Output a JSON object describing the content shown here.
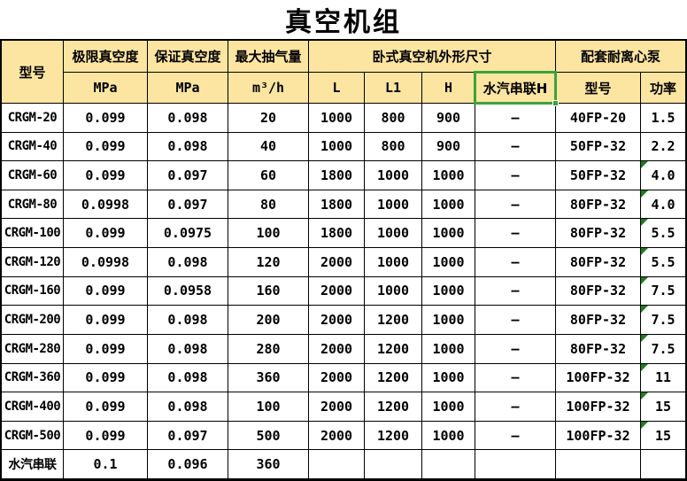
{
  "title": "真空机组",
  "colors": {
    "header_bg": "#FBE5A0",
    "selection_green": "#3CA23C",
    "flag_green": "#1E7E1E",
    "grid_line": "#000000"
  },
  "table": {
    "header": {
      "model": "型号",
      "col_ultimate": "极限真空度",
      "col_guaranteed": "保证真空度",
      "col_max_pump": "最大抽气量",
      "group_dimensions": "卧式真空机外形尺寸",
      "group_pump": "配套耐离心泵",
      "unit_mpa1": "MPa",
      "unit_mpa2": "MPa",
      "unit_m3h": "m³/h",
      "dim_l": "L",
      "dim_l1": "L1",
      "dim_h": "H",
      "dim_steam": "水汽串联H",
      "pump_model": "型号",
      "pump_power": "功率"
    },
    "selected_cell_label": "水汽串联H",
    "rows": [
      {
        "model": "CRGM-20",
        "ultimate": "0.099",
        "guaranteed": "0.098",
        "max": "20",
        "L": "1000",
        "L1": "800",
        "H": "900",
        "steam": "–",
        "pump": "40FP-20",
        "power": "1.5",
        "flag": false
      },
      {
        "model": "CRGM-40",
        "ultimate": "0.099",
        "guaranteed": "0.098",
        "max": "40",
        "L": "1000",
        "L1": "800",
        "H": "900",
        "steam": "–",
        "pump": "50FP-32",
        "power": "2.2",
        "flag": false
      },
      {
        "model": "CRGM-60",
        "ultimate": "0.099",
        "guaranteed": "0.097",
        "max": "60",
        "L": "1800",
        "L1": "1000",
        "H": "1000",
        "steam": "–",
        "pump": "50FP-32",
        "power": "4.0",
        "flag": true
      },
      {
        "model": "CRGM-80",
        "ultimate": "0.0998",
        "guaranteed": "0.097",
        "max": "80",
        "L": "1800",
        "L1": "1000",
        "H": "1000",
        "steam": "–",
        "pump": "80FP-32",
        "power": "4.0",
        "flag": true
      },
      {
        "model": "CRGM-100",
        "ultimate": "0.099",
        "guaranteed": "0.0975",
        "max": "100",
        "L": "1800",
        "L1": "1000",
        "H": "1000",
        "steam": "–",
        "pump": "80FP-32",
        "power": "5.5",
        "flag": true
      },
      {
        "model": "CRGM-120",
        "ultimate": "0.0998",
        "guaranteed": "0.098",
        "max": "120",
        "L": "2000",
        "L1": "1000",
        "H": "1000",
        "steam": "–",
        "pump": "80FP-32",
        "power": "5.5",
        "flag": true
      },
      {
        "model": "CRGM-160",
        "ultimate": "0.099",
        "guaranteed": "0.0958",
        "max": "160",
        "L": "2000",
        "L1": "1000",
        "H": "1000",
        "steam": "–",
        "pump": "80FP-32",
        "power": "7.5",
        "flag": true
      },
      {
        "model": "CRGM-200",
        "ultimate": "0.099",
        "guaranteed": "0.098",
        "max": "200",
        "L": "2000",
        "L1": "1200",
        "H": "1000",
        "steam": "–",
        "pump": "80FP-32",
        "power": "7.5",
        "flag": true
      },
      {
        "model": "CRGM-280",
        "ultimate": "0.099",
        "guaranteed": "0.098",
        "max": "280",
        "L": "2000",
        "L1": "1200",
        "H": "1000",
        "steam": "–",
        "pump": "80FP-32",
        "power": "7.5",
        "flag": true
      },
      {
        "model": "CRGM-360",
        "ultimate": "0.099",
        "guaranteed": "0.098",
        "max": "360",
        "L": "2000",
        "L1": "1200",
        "H": "1000",
        "steam": "–",
        "pump": "100FP-32",
        "power": "11",
        "flag": true
      },
      {
        "model": "CRGM-400",
        "ultimate": "0.099",
        "guaranteed": "0.098",
        "max": "100",
        "L": "2000",
        "L1": "1200",
        "H": "1000",
        "steam": "–",
        "pump": "100FP-32",
        "power": "15",
        "flag": true
      },
      {
        "model": "CRGM-500",
        "ultimate": "0.099",
        "guaranteed": "0.097",
        "max": "500",
        "L": "2000",
        "L1": "1200",
        "H": "1000",
        "steam": "–",
        "pump": "100FP-32",
        "power": "15",
        "flag": true
      },
      {
        "model": "水汽串联",
        "ultimate": "0.1",
        "guaranteed": "0.096",
        "max": "360",
        "L": "",
        "L1": "",
        "H": "",
        "steam": "",
        "pump": "",
        "power": "",
        "flag": false
      }
    ]
  }
}
